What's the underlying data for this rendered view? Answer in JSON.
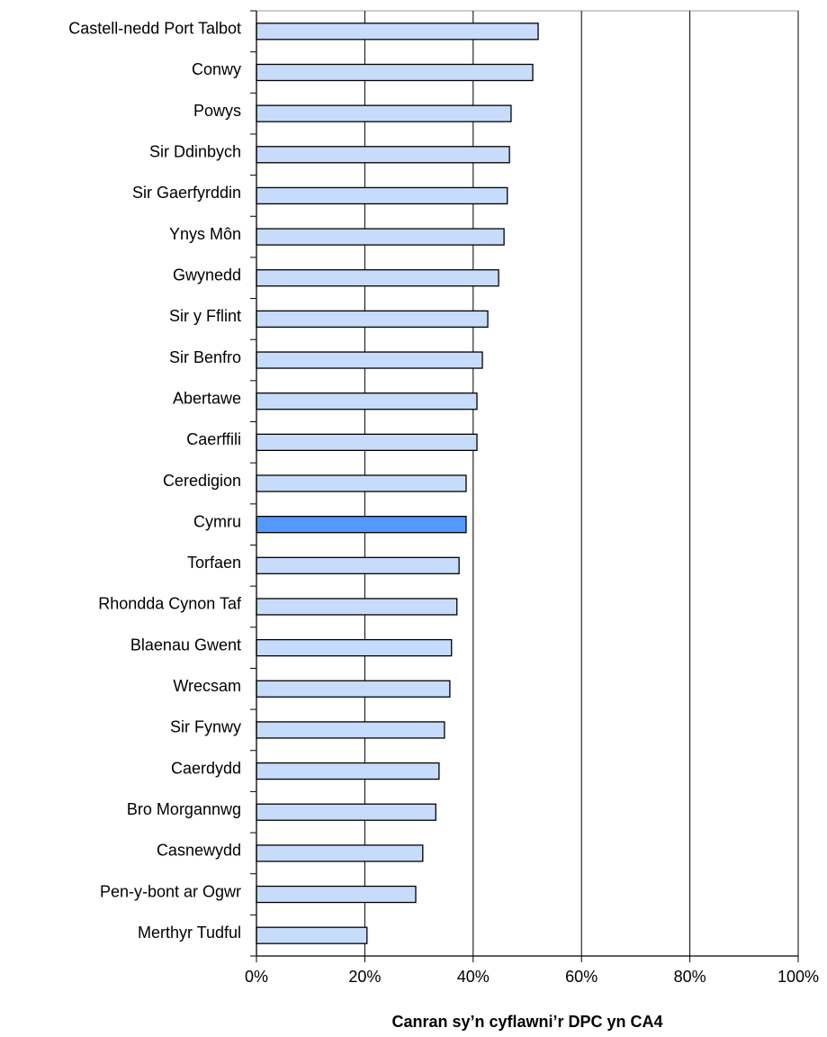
{
  "chart_data": {
    "type": "bar",
    "orientation": "horizontal",
    "x_label": "Canran sy’n cyflawni’r DPC yn CA4",
    "categories": [
      "Castell-nedd Port Talbot",
      "Conwy",
      "Powys",
      "Sir Ddinbych",
      "Sir Gaerfyrddin",
      "Ynys Môn",
      "Gwynedd",
      "Sir y Fflint",
      "Sir Benfro",
      "Abertawe",
      "Caerffili",
      "Ceredigion",
      "Cymru",
      "Torfaen",
      "Rhondda Cynon Taf",
      "Blaenau Gwent",
      "Wrecsam",
      "Sir Fynwy",
      "Caerdydd",
      "Bro Morgannwg",
      "Casnewydd",
      "Pen-y-bont ar Ogwr",
      "Merthyr Tudful"
    ],
    "values": [
      52.0,
      51.0,
      47.0,
      46.7,
      46.3,
      45.7,
      44.7,
      42.7,
      41.7,
      40.7,
      40.7,
      38.7,
      38.7,
      37.4,
      37.0,
      36.0,
      35.7,
      34.7,
      33.7,
      33.1,
      30.7,
      29.4,
      20.4
    ],
    "colors": [
      "#c6dcfa",
      "#c6dcfa",
      "#c6dcfa",
      "#c6dcfa",
      "#c6dcfa",
      "#c6dcfa",
      "#c6dcfa",
      "#c6dcfa",
      "#c6dcfa",
      "#c6dcfa",
      "#c6dcfa",
      "#c6dcfa",
      "#5599ff",
      "#c6dcfa",
      "#c6dcfa",
      "#c6dcfa",
      "#c6dcfa",
      "#c6dcfa",
      "#c6dcfa",
      "#c6dcfa",
      "#c6dcfa",
      "#c6dcfa",
      "#c6dcfa"
    ],
    "xlim": [
      0,
      100
    ],
    "xticks": [
      {
        "value": 0,
        "label": "0%"
      },
      {
        "value": 20,
        "label": "20%"
      },
      {
        "value": 40,
        "label": "40%"
      },
      {
        "value": 60,
        "label": "60%"
      },
      {
        "value": 80,
        "label": "80%"
      },
      {
        "value": 100,
        "label": "100%"
      }
    ],
    "grid": true
  }
}
